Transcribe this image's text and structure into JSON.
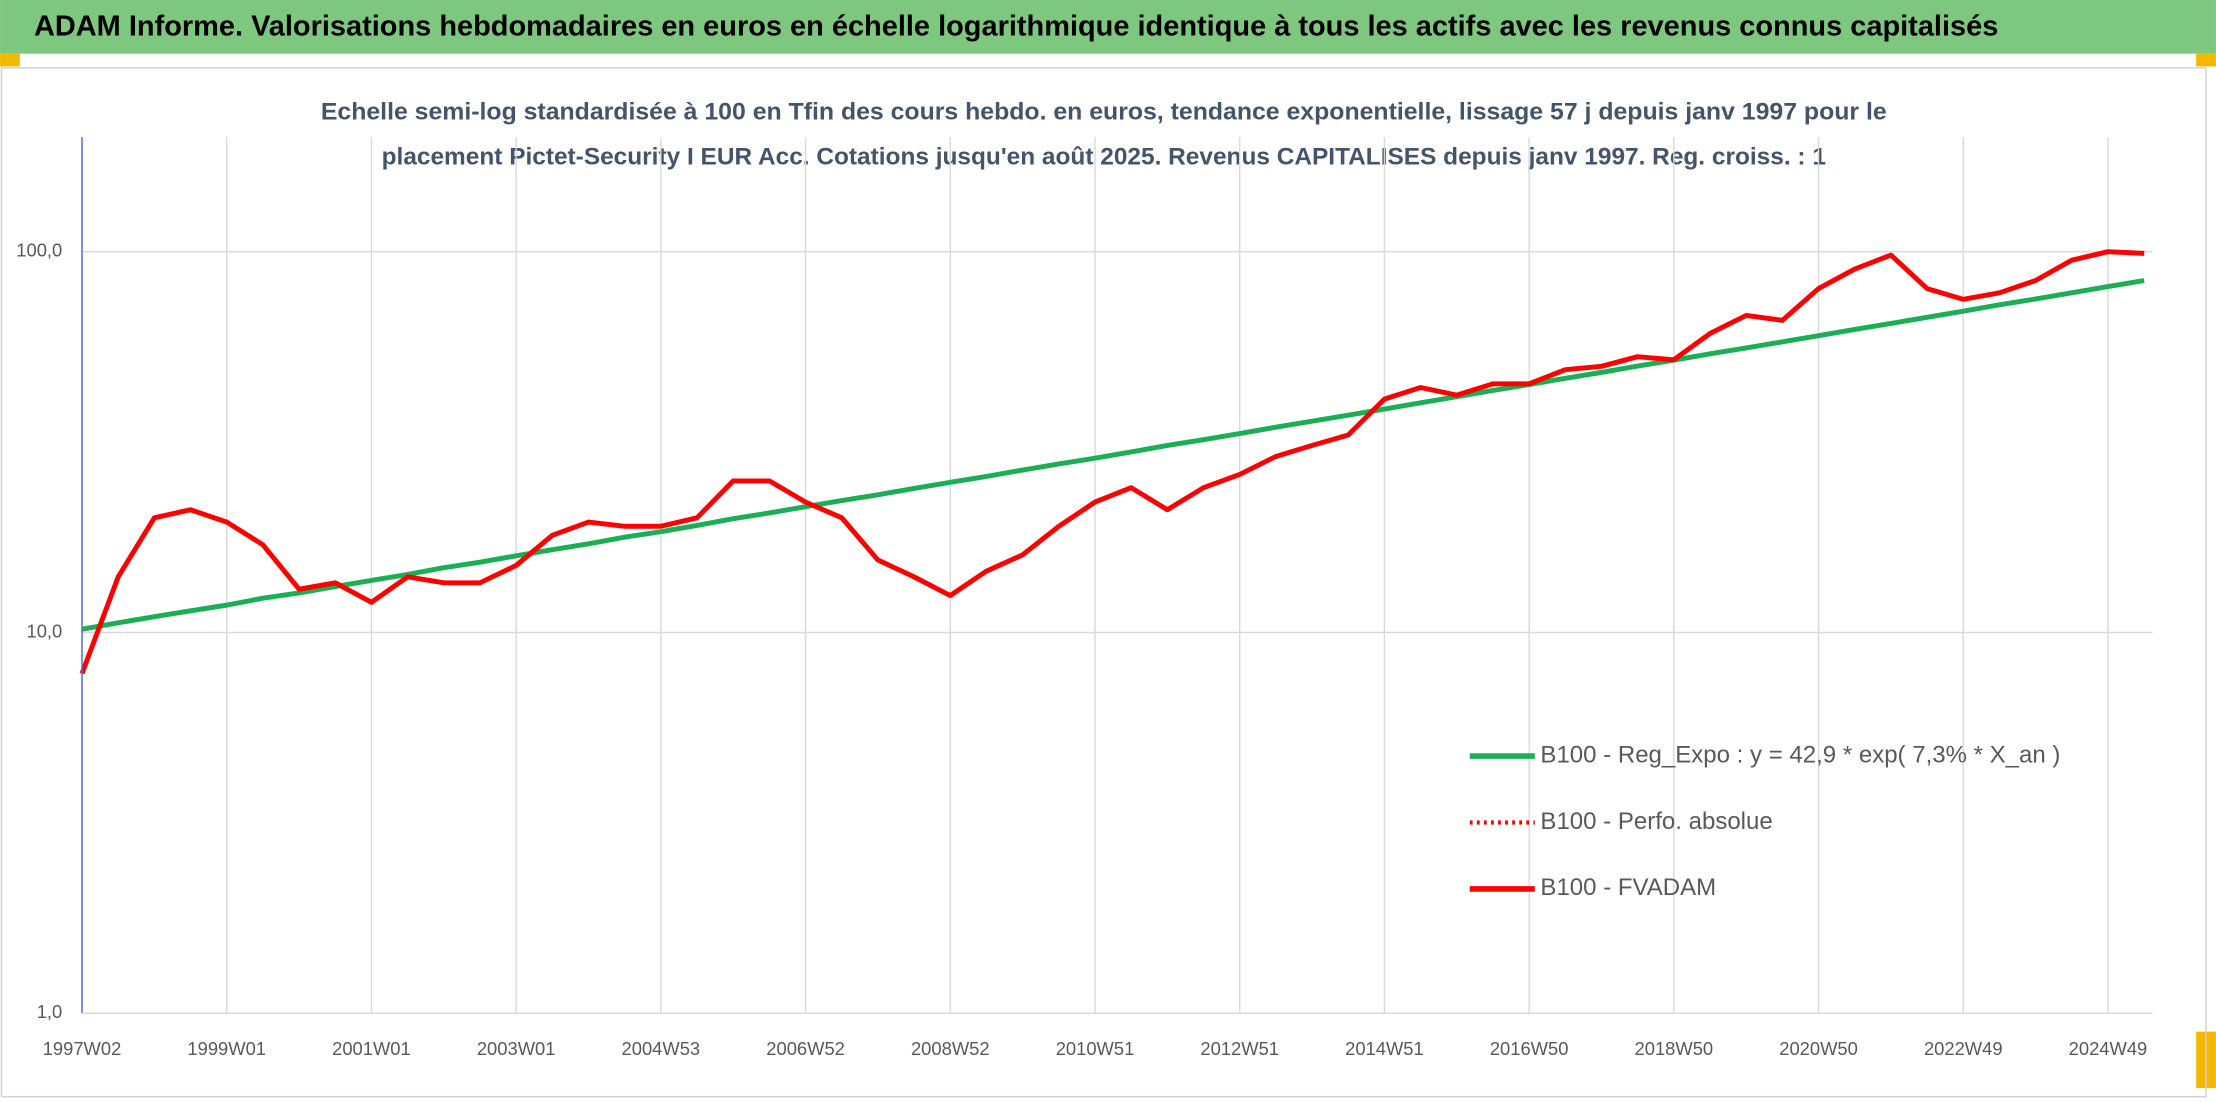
{
  "chart_data": {
    "type": "line",
    "title": "ADAM Informe. Valorisations hebdomadaires en euros en échelle logarithmique identique à tous les actifs avec les revenus connus capitalisés",
    "subtitle": [
      "Echelle semi-log standardisée à 100 en Tfin des cours hebdo. en euros, tendance exponentielle, lissage 57 j depuis janv 1997 pour le",
      "placement Pictet-Security I EUR Acc. Cotations jusqu'en août 2025. Revenus CAPITALISES depuis janv 1997. Reg. croiss. : 1"
    ],
    "log_scale": true,
    "grid": true,
    "ylim": [
      1,
      200
    ],
    "yticks": [
      {
        "value": 1,
        "label": "1,0"
      },
      {
        "value": 10,
        "label": "10,0"
      },
      {
        "value": 100,
        "label": "100,0"
      }
    ],
    "categories": [
      "1997W02",
      null,
      null,
      null,
      "1999W01",
      null,
      null,
      null,
      "2001W01",
      null,
      null,
      null,
      "2003W01",
      null,
      null,
      null,
      "2004W53",
      null,
      null,
      null,
      "2006W52",
      null,
      null,
      null,
      "2008W52",
      null,
      null,
      null,
      "2010W51",
      null,
      null,
      null,
      "2012W51",
      null,
      null,
      null,
      "2014W51",
      null,
      null,
      null,
      "2016W50",
      null,
      null,
      null,
      "2018W50",
      null,
      null,
      null,
      "2020W50",
      null,
      null,
      null,
      "2022W49",
      null,
      null,
      null,
      "2024W49",
      null
    ],
    "series": [
      {
        "name": "B100 - Reg_Expo : y = 42,9 * exp( 7,3% *  X_an )",
        "color": "#1aaf54",
        "style": "solid",
        "values": [
          10.2,
          10.6,
          11.0,
          11.4,
          11.8,
          12.3,
          12.7,
          13.2,
          13.7,
          14.2,
          14.8,
          15.3,
          15.9,
          16.5,
          17.1,
          17.8,
          18.4,
          19.1,
          19.9,
          20.6,
          21.4,
          22.2,
          23.0,
          23.9,
          24.8,
          25.7,
          26.7,
          27.7,
          28.7,
          29.8,
          31.0,
          32.1,
          33.3,
          34.6,
          35.9,
          37.2,
          38.6,
          40.1,
          41.6,
          43.2,
          44.8,
          46.5,
          48.2,
          50.1,
          51.9,
          53.9,
          55.9,
          58.0,
          60.2,
          62.5,
          64.8,
          67.3,
          69.8,
          72.5,
          75.2,
          78.0,
          81.0,
          84.0
        ]
      },
      {
        "name": "B100 - Perfo. absolue",
        "color": "#ff0000",
        "style": "dotted",
        "values": [
          7.8,
          14,
          20,
          21,
          19.5,
          17,
          13,
          13.5,
          12,
          14,
          13.5,
          13.5,
          15,
          18,
          19.5,
          19,
          19,
          20,
          25,
          25,
          22,
          20,
          15.5,
          14,
          12.5,
          14.5,
          16,
          19,
          22,
          24,
          21,
          24,
          26,
          29,
          31,
          33,
          41,
          44,
          42,
          45,
          45,
          49,
          50,
          53,
          52,
          61,
          68,
          66,
          80,
          90,
          98,
          80,
          75,
          78,
          84,
          95,
          100,
          99
        ]
      },
      {
        "name": "B100 - FVADAM",
        "color": "#ff0000",
        "style": "solid",
        "values": [
          7.8,
          14,
          20,
          21,
          19.5,
          17,
          13,
          13.5,
          12,
          14,
          13.5,
          13.5,
          15,
          18,
          19.5,
          19,
          19,
          20,
          25,
          25,
          22,
          20,
          15.5,
          14,
          12.5,
          14.5,
          16,
          19,
          22,
          24,
          21,
          24,
          26,
          29,
          31,
          33,
          41,
          44,
          42,
          45,
          45,
          49,
          50,
          53,
          52,
          61,
          68,
          66,
          80,
          90,
          98,
          80,
          75,
          78,
          84,
          95,
          100,
          99
        ]
      }
    ]
  }
}
